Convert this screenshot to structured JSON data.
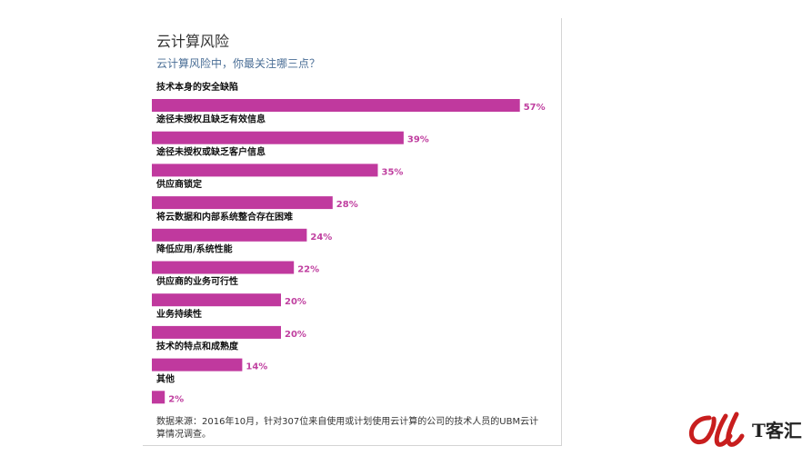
{
  "header": {
    "title": "云计算风险",
    "subtitle": "云计算风险中，你最关注哪三点？"
  },
  "chart_data": {
    "type": "bar",
    "orientation": "horizontal",
    "categories": [
      "技术本身的安全缺陷",
      "途径未授权且缺乏有效信息",
      "途径未授权或缺乏客户信息",
      "供应商锁定",
      "将云数据和内部系统整合存在困难",
      "降低应用/系统性能",
      "供应商的业务可行性",
      "业务持续性",
      "技术的特点和成熟度",
      "其他"
    ],
    "values": [
      57,
      39,
      35,
      28,
      24,
      22,
      20,
      20,
      14,
      2
    ],
    "value_labels": [
      "57%",
      "39%",
      "35%",
      "28%",
      "24%",
      "22%",
      "20%",
      "20%",
      "14%",
      "2%"
    ],
    "unit": "%",
    "bar_color": "#c0399e",
    "label_color": "#c040a0",
    "grid": false,
    "legend": "none"
  },
  "footer": {
    "source": "数据来源：2016年10月，针对307位来自使用或计划使用云计算的公司的技术人员的UBM云计算情况调查。"
  },
  "brand": {
    "name": "IT客汇",
    "logo_text": "T客汇",
    "logo_icon": "it-letters-logo-icon",
    "logo_color": "#c81e1e"
  }
}
